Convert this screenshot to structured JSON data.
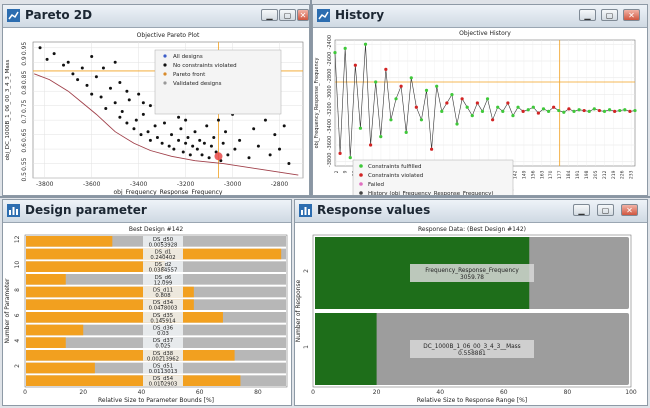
{
  "windows": {
    "pareto": {
      "title": "Pareto 2D"
    },
    "history": {
      "title": "History"
    },
    "design": {
      "title": "Design parameter"
    },
    "response": {
      "title": "Response values"
    }
  },
  "colors": {
    "orange": "#f2a01f",
    "green_bar": "#1e6e1a",
    "bar_gray": "#b7b7b7",
    "bar_bg": "#9d9d9d"
  },
  "chart_data": [
    {
      "type": "scatter",
      "title": "Objective Pareto Plot",
      "xlabel": "obj_Frequency_Response_Frequency",
      "ylabel": "obj_DC_1000B_1_06_00_3_4_3_Mass",
      "x_ticks": [
        "-3800",
        "-3600",
        "-3400",
        "-3200",
        "-3000",
        "-2800"
      ],
      "y_ticks": [
        "0.5",
        "0.55",
        "0.6",
        "0.65",
        "0.7",
        "0.75",
        "0.8",
        "0.85",
        "0.9",
        "0.95"
      ],
      "legend": [
        "All designs",
        "No constraints violated",
        "Pareto front",
        "Validated designs"
      ],
      "xlim": [
        -3850,
        -2700
      ],
      "ylim": [
        0.5,
        0.97
      ],
      "pareto_front": [
        [
          -3845,
          0.86
        ],
        [
          -3780,
          0.84
        ],
        [
          -3700,
          0.8
        ],
        [
          -3640,
          0.76
        ],
        [
          -3580,
          0.72
        ],
        [
          -3500,
          0.66
        ],
        [
          -3420,
          0.62
        ],
        [
          -3350,
          0.595
        ],
        [
          -3260,
          0.575
        ],
        [
          -3160,
          0.56
        ],
        [
          -3040,
          0.55
        ],
        [
          -2880,
          0.53
        ],
        [
          -2720,
          0.51
        ]
      ],
      "points": [
        [
          -3820,
          0.95
        ],
        [
          -3790,
          0.91
        ],
        [
          -3760,
          0.93
        ],
        [
          -3720,
          0.89
        ],
        [
          -3700,
          0.9
        ],
        [
          -3680,
          0.86
        ],
        [
          -3660,
          0.84
        ],
        [
          -3640,
          0.88
        ],
        [
          -3620,
          0.82
        ],
        [
          -3600,
          0.79
        ],
        [
          -3580,
          0.85
        ],
        [
          -3560,
          0.78
        ],
        [
          -3540,
          0.74
        ],
        [
          -3520,
          0.81
        ],
        [
          -3500,
          0.76
        ],
        [
          -3480,
          0.71
        ],
        [
          -3470,
          0.73
        ],
        [
          -3450,
          0.69
        ],
        [
          -3440,
          0.77
        ],
        [
          -3420,
          0.67
        ],
        [
          -3410,
          0.7
        ],
        [
          -3390,
          0.65
        ],
        [
          -3380,
          0.72
        ],
        [
          -3360,
          0.66
        ],
        [
          -3350,
          0.63
        ],
        [
          -3330,
          0.68
        ],
        [
          -3320,
          0.64
        ],
        [
          -3300,
          0.62
        ],
        [
          -3290,
          0.69
        ],
        [
          -3270,
          0.61
        ],
        [
          -3260,
          0.65
        ],
        [
          -3250,
          0.6
        ],
        [
          -3230,
          0.63
        ],
        [
          -3220,
          0.67
        ],
        [
          -3210,
          0.59
        ],
        [
          -3200,
          0.62
        ],
        [
          -3190,
          0.64
        ],
        [
          -3180,
          0.58
        ],
        [
          -3170,
          0.61
        ],
        [
          -3160,
          0.66
        ],
        [
          -3150,
          0.6
        ],
        [
          -3140,
          0.63
        ],
        [
          -3130,
          0.58
        ],
        [
          -3120,
          0.62
        ],
        [
          -3110,
          0.68
        ],
        [
          -3100,
          0.57
        ],
        [
          -3090,
          0.61
        ],
        [
          -3080,
          0.64
        ],
        [
          -3070,
          0.59
        ],
        [
          -3060,
          0.7
        ],
        [
          -3050,
          0.56
        ],
        [
          -3040,
          0.62
        ],
        [
          -3030,
          0.66
        ],
        [
          -3020,
          0.58
        ],
        [
          -3000,
          0.72
        ],
        [
          -2990,
          0.6
        ],
        [
          -2970,
          0.63
        ],
        [
          -2950,
          0.75
        ],
        [
          -2930,
          0.57
        ],
        [
          -2910,
          0.67
        ],
        [
          -2890,
          0.61
        ],
        [
          -2860,
          0.7
        ],
        [
          -2840,
          0.58
        ],
        [
          -2820,
          0.65
        ],
        [
          -2800,
          0.6
        ],
        [
          -2780,
          0.68
        ],
        [
          -2760,
          0.55
        ],
        [
          -3450,
          0.8
        ],
        [
          -3380,
          0.76
        ],
        [
          -3300,
          0.73
        ],
        [
          -3230,
          0.71
        ],
        [
          -3150,
          0.74
        ],
        [
          -3100,
          0.78
        ],
        [
          -3550,
          0.88
        ],
        [
          -3480,
          0.83
        ],
        [
          -3400,
          0.79
        ],
        [
          -3350,
          0.75
        ],
        [
          -3280,
          0.77
        ],
        [
          -3200,
          0.7
        ],
        [
          -3500,
          0.9
        ],
        [
          -3600,
          0.92
        ]
      ],
      "best_point": [
        -3060,
        0.575
      ]
    },
    {
      "type": "line",
      "title": "Objective History",
      "xlabel": "Optimization Steps",
      "ylabel": "obj_Frequency_Response_Frequency",
      "y_ticks": [
        "-2400",
        "-2600",
        "-2800",
        "-3000",
        "-3200",
        "-3400",
        "-3600",
        "-3800"
      ],
      "x_ticks": [
        "2",
        "9",
        "16",
        "23",
        "30",
        "37",
        "44",
        "51",
        "58",
        "65",
        "72",
        "79",
        "86",
        "93",
        "100",
        "107",
        "114",
        "121",
        "128",
        "135",
        "142",
        "149",
        "156",
        "163",
        "170",
        "177",
        "184",
        "191",
        "198",
        "205",
        "212",
        "219",
        "226",
        "233"
      ],
      "legend": [
        "Constraints fulfilled",
        "Constraints violated",
        "Failed",
        "History (obj_Frequency_Response_Frequency)"
      ],
      "xlim": [
        1,
        236
      ],
      "ylim": [
        -3850,
        -2350
      ],
      "series_sample": [
        -2500,
        -3700,
        -2450,
        -3750,
        -2650,
        -3400,
        -2400,
        -3600,
        -2850,
        -3500,
        -2700,
        -3300,
        -3050,
        -2900,
        -3450,
        -2800,
        -3150,
        -3300,
        -2950,
        -3650,
        -2900,
        -3200,
        -3100,
        -3000,
        -3350,
        -3050,
        -3150,
        -3250,
        -3100,
        -3200,
        -3050,
        -3300,
        -3150,
        -3200,
        -3100,
        -3250,
        -3150,
        -3200,
        -3180,
        -3150,
        -3220,
        -3170,
        -3200,
        -3150,
        -3190,
        -3210,
        -3170,
        -3200,
        -3180,
        -3190,
        -3200,
        -3170,
        -3190,
        -3200,
        -3180,
        -3200,
        -3190,
        -3180,
        -3200,
        -3190
      ],
      "ref_line_y": -2850,
      "ref_line_x": 177
    },
    {
      "type": "bar",
      "title": "Best Design #142",
      "xlabel": "Relative Size to Parameter Bounds [%]",
      "ylabel": "Number of Parameter",
      "x_ticks": [
        "0",
        "20",
        "40",
        "60",
        "80"
      ],
      "y_ticks": [
        "2",
        "4",
        "6",
        "8",
        "10",
        "12"
      ],
      "xlim": [
        0,
        90
      ],
      "bars": [
        {
          "name": "DS_d50",
          "value": "0.0053928",
          "pct": 30
        },
        {
          "name": "DS_d1",
          "value": "0.240402",
          "pct": 88
        },
        {
          "name": "DS_d2",
          "value": "0.0384557",
          "pct": 48
        },
        {
          "name": "DS_d6",
          "value": "12.099",
          "pct": 14
        },
        {
          "name": "DS_d11",
          "value": "0.808",
          "pct": 58
        },
        {
          "name": "DS_d34",
          "value": "0.0478003",
          "pct": 58
        },
        {
          "name": "DS_d35",
          "value": "0.145914",
          "pct": 68
        },
        {
          "name": "DS_d36",
          "value": "0.03",
          "pct": 20
        },
        {
          "name": "DS_d37",
          "value": "0.025",
          "pct": 14
        },
        {
          "name": "DS_d38",
          "value": "0.00213962",
          "pct": 72
        },
        {
          "name": "DS_d51",
          "value": "0.0113013",
          "pct": 24
        },
        {
          "name": "DS_d54",
          "value": "0.0102903",
          "pct": 74
        }
      ]
    },
    {
      "type": "bar",
      "title": "Response Data: (Best Design #142)",
      "xlabel": "Relative Size to Response Range [%]",
      "ylabel": "Number of Response",
      "x_ticks": [
        "0",
        "20",
        "40",
        "60",
        "80",
        "100"
      ],
      "y_ticks": [
        "1",
        "2"
      ],
      "xlim": [
        0,
        100
      ],
      "bars": [
        {
          "name": "Frequency_Response_Frequency",
          "value": "3059.78",
          "pct": 68
        },
        {
          "name": "DC_1000B_1_06_00_3_4_3__Mass",
          "value": "0.558881",
          "pct": 20
        }
      ]
    }
  ]
}
